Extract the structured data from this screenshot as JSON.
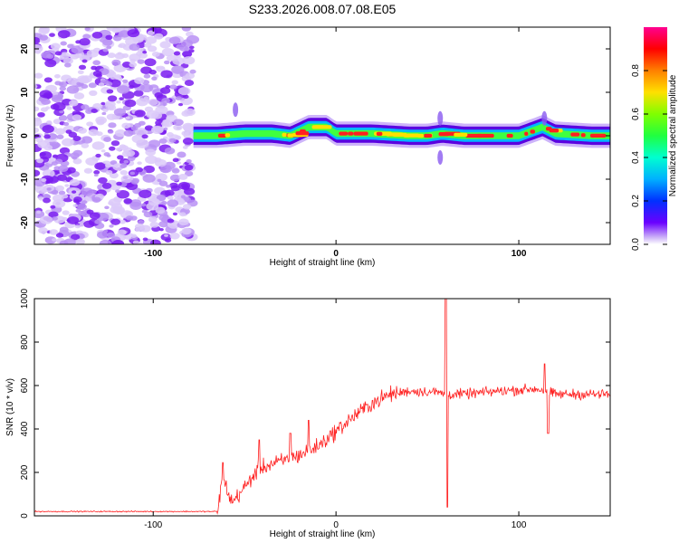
{
  "title": "S233.2026.008.07.08.E05",
  "colors": {
    "snr_line": "#ff2020",
    "background": "#ffffff",
    "noise": "#8a3cf0"
  },
  "chart_data": [
    {
      "type": "heatmap",
      "name": "spectrogram",
      "xlabel": "Height of straight line (km)",
      "ylabel": "Frequency (Hz)",
      "xlim": [
        -165,
        150
      ],
      "ylim": [
        -25,
        25
      ],
      "xticks": [
        -100,
        0,
        100
      ],
      "xtick_labels": [
        "-100",
        "0",
        "100"
      ],
      "yticks": [
        -20,
        -10,
        0,
        10,
        20
      ],
      "ytick_labels": [
        "-20",
        "-10",
        "0",
        "10",
        "20"
      ],
      "colorbar": {
        "label": "Normalized spectral amplitude",
        "range": [
          0,
          1
        ],
        "ticks": [
          0,
          0.2,
          0.4,
          0.6,
          0.8
        ],
        "tick_labels": [
          "0.0",
          "0.2",
          "0.4",
          "0.6",
          "0.8"
        ]
      },
      "noise_region_x": [
        -165,
        -78
      ],
      "signal_center_freq": [
        [
          -78,
          0
        ],
        [
          -65,
          0
        ],
        [
          -50,
          0.5
        ],
        [
          -35,
          0.5
        ],
        [
          -25,
          0
        ],
        [
          -15,
          2
        ],
        [
          -5,
          2
        ],
        [
          0,
          0.5
        ],
        [
          20,
          0.5
        ],
        [
          40,
          0
        ],
        [
          50,
          0
        ],
        [
          58,
          0.5
        ],
        [
          70,
          0
        ],
        [
          100,
          0
        ],
        [
          113,
          2
        ],
        [
          120,
          0.5
        ],
        [
          140,
          0
        ],
        [
          150,
          0
        ]
      ]
    },
    {
      "type": "line",
      "name": "snr",
      "xlabel": "Height of straight line (km)",
      "ylabel": "SNR (10 * v/v)",
      "xlim": [
        -165,
        150
      ],
      "ylim": [
        0,
        1000
      ],
      "xticks": [
        -100,
        0,
        100
      ],
      "xtick_labels": [
        "-100",
        "0",
        "100"
      ],
      "yticks": [
        0,
        200,
        400,
        600,
        800,
        1000
      ],
      "ytick_labels": [
        "0",
        "200",
        "400",
        "600",
        "800",
        "1000"
      ],
      "trend": [
        [
          -165,
          20
        ],
        [
          -65,
          20
        ],
        [
          -62,
          180
        ],
        [
          -57,
          60
        ],
        [
          -50,
          130
        ],
        [
          -42,
          220
        ],
        [
          -30,
          250
        ],
        [
          -20,
          280
        ],
        [
          -10,
          320
        ],
        [
          0,
          390
        ],
        [
          10,
          460
        ],
        [
          20,
          520
        ],
        [
          30,
          560
        ],
        [
          40,
          575
        ],
        [
          55,
          570
        ],
        [
          60,
          560
        ],
        [
          70,
          560
        ],
        [
          90,
          575
        ],
        [
          110,
          585
        ],
        [
          120,
          560
        ],
        [
          135,
          560
        ],
        [
          150,
          560
        ]
      ],
      "spikes": [
        {
          "x": -62,
          "y": 245
        },
        {
          "x": -42,
          "y": 350
        },
        {
          "x": -25,
          "y": 380
        },
        {
          "x": -15,
          "y": 440
        },
        {
          "x": 60,
          "y": 1000
        },
        {
          "x": 61,
          "y": 40
        },
        {
          "x": 114,
          "y": 700
        },
        {
          "x": 116,
          "y": 380
        }
      ]
    }
  ]
}
